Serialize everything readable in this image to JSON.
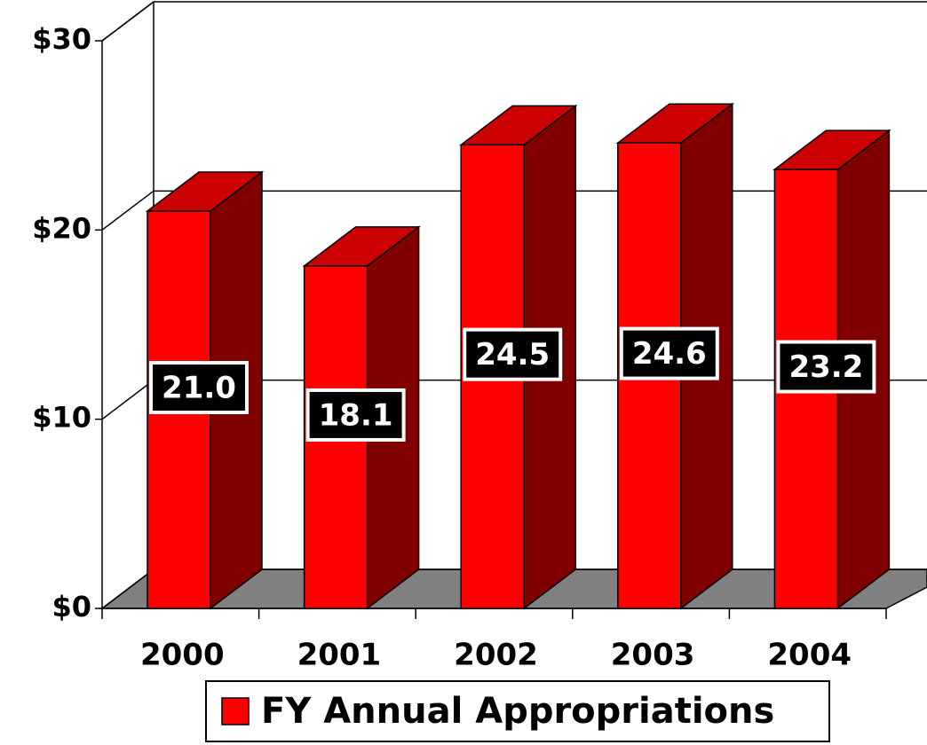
{
  "chart_data": {
    "type": "bar3d",
    "categories": [
      "2000",
      "2001",
      "2002",
      "2003",
      "2004"
    ],
    "series": [
      {
        "name": "FY Annual Appropriations",
        "color": "#ff0000",
        "values": [
          21.0,
          18.1,
          24.5,
          24.6,
          23.2
        ],
        "value_labels": [
          "21.0",
          "18.1",
          "24.5",
          "24.6",
          "23.2"
        ]
      }
    ],
    "ylim": [
      0,
      30
    ],
    "yticks": [
      {
        "value": 0,
        "label": "$0"
      },
      {
        "value": 10,
        "label": "$10"
      },
      {
        "value": 20,
        "label": "$20"
      },
      {
        "value": 30,
        "label": "$30"
      }
    ],
    "grid": true,
    "legend": "bottom"
  }
}
